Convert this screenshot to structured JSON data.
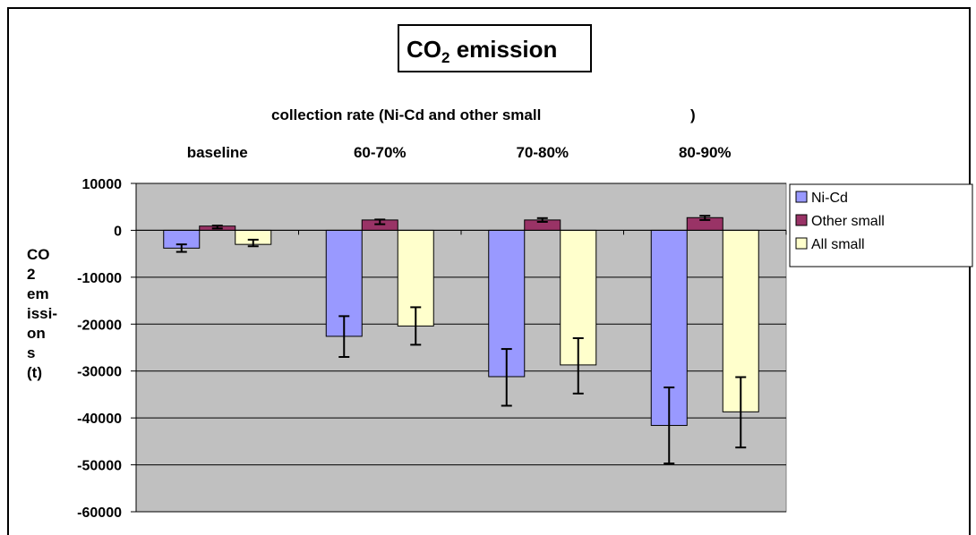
{
  "chart_data": {
    "type": "bar",
    "title_main": "CO",
    "title_sub": "2",
    "title_rest": " emission",
    "x_title_left": "collection rate (Ni-Cd and other small",
    "x_title_paren": ")",
    "categories": [
      "baseline",
      "60-70%",
      "70-80%",
      "80-90%"
    ],
    "ylabel_lines": [
      "CO",
      "2",
      "em",
      "issi-",
      "on",
      "s",
      "(t)"
    ],
    "ylim": [
      -60000,
      10000
    ],
    "yticks": [
      10000,
      0,
      -10000,
      -20000,
      -30000,
      -40000,
      -50000,
      -60000
    ],
    "ytick_labels": [
      "10000",
      "0",
      "-10000",
      "-20000",
      "-30000",
      "-40000",
      "-50000",
      "-60000"
    ],
    "grid": true,
    "legend_position": "right",
    "series": [
      {
        "name": "Ni-Cd",
        "color": "#9999ff",
        "values": [
          -3800,
          -22600,
          -31200,
          -41600
        ],
        "err_low": [
          -4600,
          -27000,
          -37400,
          -49700
        ],
        "err_high": [
          -3000,
          -18300,
          -25300,
          -33500
        ]
      },
      {
        "name": "Other small",
        "color": "#993366",
        "values": [
          900,
          2200,
          2200,
          2700
        ],
        "err_low": [
          400,
          1300,
          1800,
          2200
        ],
        "err_high": [
          1000,
          2300,
          2600,
          3100
        ]
      },
      {
        "name": "All small",
        "color": "#ffffcc",
        "values": [
          -3000,
          -20400,
          -28700,
          -38700
        ],
        "err_low": [
          -3400,
          -24400,
          -34800,
          -46300
        ],
        "err_high": [
          -2000,
          -16400,
          -23000,
          -31300
        ]
      }
    ]
  }
}
